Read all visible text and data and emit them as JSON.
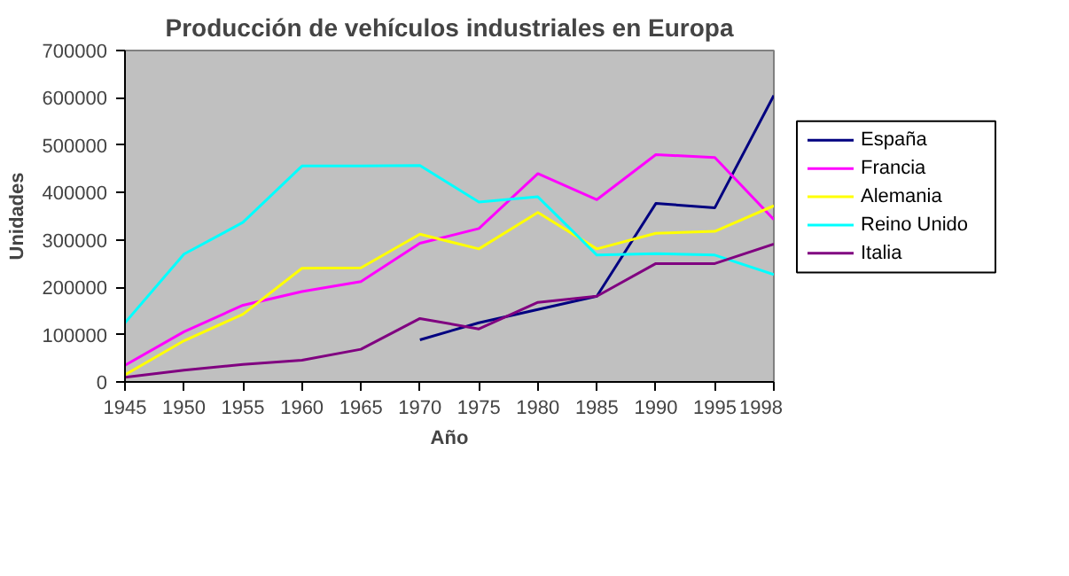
{
  "chart_data": {
    "type": "line",
    "title": "Producción de vehículos industriales en Europa",
    "xlabel": "Año",
    "ylabel": "Unidades",
    "categories": [
      "1945",
      "1950",
      "1955",
      "1960",
      "1965",
      "1970",
      "1975",
      "1980",
      "1985",
      "1990",
      "1995",
      "1998"
    ],
    "series": [
      {
        "name": "España",
        "color": "#000080",
        "values": [
          null,
          null,
          null,
          null,
          null,
          89000,
          125000,
          153000,
          181000,
          377000,
          368000,
          605000
        ]
      },
      {
        "name": "Francia",
        "color": "#ff00ff",
        "values": [
          35000,
          106000,
          162000,
          191000,
          212000,
          293000,
          324000,
          440000,
          385000,
          480000,
          474000,
          343000
        ]
      },
      {
        "name": "Alemania",
        "color": "#ffff00",
        "values": [
          15000,
          87000,
          143000,
          240000,
          241000,
          312000,
          281000,
          358000,
          281000,
          314000,
          318000,
          372000
        ]
      },
      {
        "name": "Reino Unido",
        "color": "#00ffff",
        "values": [
          125000,
          270000,
          337000,
          456000,
          456000,
          457000,
          380000,
          391000,
          268000,
          271000,
          268000,
          227000
        ]
      },
      {
        "name": "Italia",
        "color": "#800080",
        "values": [
          10000,
          25000,
          37000,
          46000,
          69000,
          134000,
          112000,
          168000,
          181000,
          250000,
          250000,
          291000
        ]
      }
    ],
    "ylim": [
      0,
      700000
    ],
    "yticks": [
      0,
      100000,
      200000,
      300000,
      400000,
      500000,
      600000,
      700000
    ],
    "grid": false,
    "legend": "right",
    "marker": "none",
    "line_style": "solid"
  }
}
